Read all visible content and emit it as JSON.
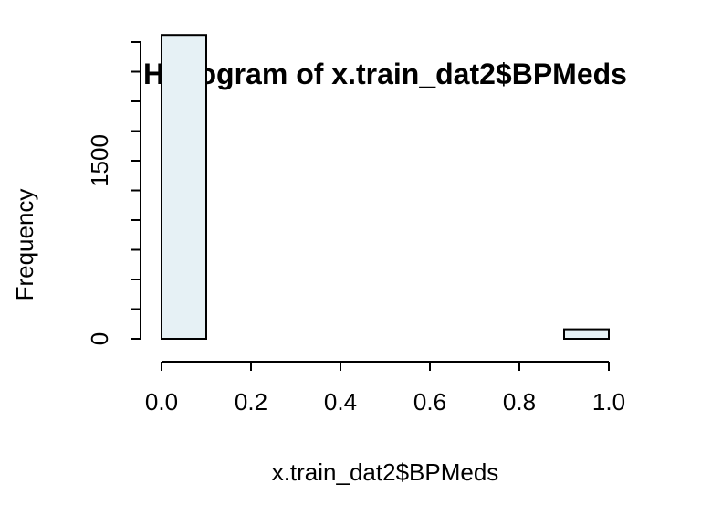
{
  "chart_data": {
    "type": "bar",
    "title": "Histogram of x.train_dat2$BPMeds",
    "xlabel": "x.train_dat2$BPMeds",
    "ylabel": "Frequency",
    "bar_color": "#e6f1f5",
    "xlim": [
      0,
      1
    ],
    "ylim": [
      0,
      3000
    ],
    "x_ticks": [
      0.0,
      0.2,
      0.4,
      0.6,
      0.8,
      1.0
    ],
    "x_tick_labels": [
      "0.0",
      "0.2",
      "0.4",
      "0.6",
      "0.8",
      "1.0"
    ],
    "y_ticks": [
      0,
      250,
      500,
      750,
      1000,
      1250,
      1500,
      1750,
      2000,
      2250,
      2500
    ],
    "y_tick_labels": [
      {
        "value": 0,
        "label": "0"
      },
      {
        "value": 1500,
        "label": "1500"
      }
    ],
    "bins": [
      {
        "x0": 0.0,
        "x1": 0.1,
        "count": 2560
      },
      {
        "x0": 0.1,
        "x1": 0.2,
        "count": 0
      },
      {
        "x0": 0.2,
        "x1": 0.3,
        "count": 0
      },
      {
        "x0": 0.3,
        "x1": 0.4,
        "count": 0
      },
      {
        "x0": 0.4,
        "x1": 0.5,
        "count": 0
      },
      {
        "x0": 0.5,
        "x1": 0.6,
        "count": 0
      },
      {
        "x0": 0.6,
        "x1": 0.7,
        "count": 0
      },
      {
        "x0": 0.7,
        "x1": 0.8,
        "count": 0
      },
      {
        "x0": 0.8,
        "x1": 0.9,
        "count": 0
      },
      {
        "x0": 0.9,
        "x1": 1.0,
        "count": 80
      }
    ],
    "grid": false,
    "legend": "none"
  }
}
